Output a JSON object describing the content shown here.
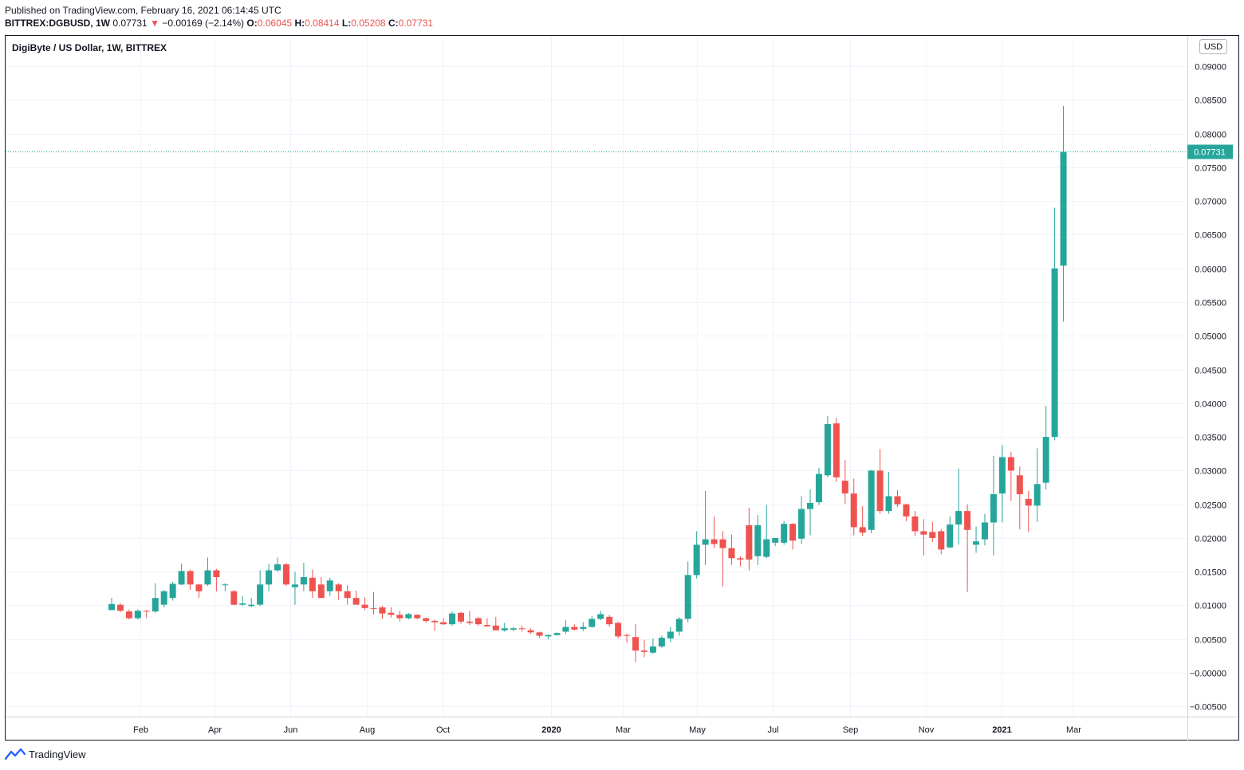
{
  "header": {
    "published": "Published on TradingView.com, February 16, 2021 06:14:45 UTC",
    "symbol": "BITTREX:DGBUSD, 1W",
    "last": "0.07731",
    "change_arrow": "▼",
    "change": "−0.00169 (−2.14%)",
    "o_label": "O:",
    "o_value": "0.06045",
    "h_label": "H:",
    "h_value": "0.08414",
    "l_label": "L:",
    "l_value": "0.05208",
    "c_label": "C:",
    "c_value": "0.07731"
  },
  "chart_title": "DigiByte / US Dollar, 1W, BITTREX",
  "footer": {
    "brand": "TradingView",
    "logo_icon": "tradingview-logo-icon"
  },
  "colors": {
    "up": "#26a69a",
    "down": "#ef5350",
    "grid": "#f0f3fa",
    "text": "#131722"
  },
  "chart_data": {
    "type": "candlestick",
    "title": "DigiByte / US Dollar, 1W, BITTREX",
    "currency_label": "USD",
    "last_price_label": "0.07731",
    "last_price": 0.07731,
    "ylim": [
      -0.0065,
      0.0945
    ],
    "y_ticks": [
      {
        "v": 0.09,
        "label": "0.09000"
      },
      {
        "v": 0.085,
        "label": "0.08500"
      },
      {
        "v": 0.08,
        "label": "0.08000"
      },
      {
        "v": 0.075,
        "label": "0.07500"
      },
      {
        "v": 0.07,
        "label": "0.07000"
      },
      {
        "v": 0.065,
        "label": "0.06500"
      },
      {
        "v": 0.06,
        "label": "0.06000"
      },
      {
        "v": 0.055,
        "label": "0.05500"
      },
      {
        "v": 0.05,
        "label": "0.05000"
      },
      {
        "v": 0.045,
        "label": "0.04500"
      },
      {
        "v": 0.04,
        "label": "0.04000"
      },
      {
        "v": 0.035,
        "label": "0.03500"
      },
      {
        "v": 0.03,
        "label": "0.03000"
      },
      {
        "v": 0.025,
        "label": "0.02500"
      },
      {
        "v": 0.02,
        "label": "0.02000"
      },
      {
        "v": 0.015,
        "label": "0.01500"
      },
      {
        "v": 0.01,
        "label": "0.01000"
      },
      {
        "v": 0.005,
        "label": "0.00500"
      },
      {
        "v": 0.0,
        "label": "−0.00000"
      },
      {
        "v": -0.005,
        "label": "−0.00500"
      }
    ],
    "x_ticks": [
      {
        "week": 3.3,
        "label": "Feb",
        "bold": false
      },
      {
        "week": 11.8,
        "label": "Apr",
        "bold": false
      },
      {
        "week": 20.5,
        "label": "Jun",
        "bold": false
      },
      {
        "week": 29.2,
        "label": "Aug",
        "bold": false
      },
      {
        "week": 37.9,
        "label": "Oct",
        "bold": false
      },
      {
        "week": 50.3,
        "label": "2020",
        "bold": true
      },
      {
        "week": 58.5,
        "label": "Mar",
        "bold": false
      },
      {
        "week": 67.0,
        "label": "May",
        "bold": false
      },
      {
        "week": 75.7,
        "label": "Jul",
        "bold": false
      },
      {
        "week": 84.6,
        "label": "Sep",
        "bold": false
      },
      {
        "week": 93.2,
        "label": "Nov",
        "bold": false
      },
      {
        "week": 101.9,
        "label": "2021",
        "bold": true
      },
      {
        "week": 110.1,
        "label": "Mar",
        "bold": false
      }
    ],
    "candles": [
      {
        "o": 0.0093,
        "h": 0.0111,
        "l": 0.0093,
        "c": 0.0102
      },
      {
        "o": 0.0101,
        "h": 0.0103,
        "l": 0.009,
        "c": 0.0092
      },
      {
        "o": 0.0091,
        "h": 0.0094,
        "l": 0.0079,
        "c": 0.0081
      },
      {
        "o": 0.0081,
        "h": 0.0094,
        "l": 0.0079,
        "c": 0.0092
      },
      {
        "o": 0.0092,
        "h": 0.0093,
        "l": 0.0081,
        "c": 0.0091
      },
      {
        "o": 0.0091,
        "h": 0.0133,
        "l": 0.0089,
        "c": 0.0111
      },
      {
        "o": 0.0101,
        "h": 0.0123,
        "l": 0.0097,
        "c": 0.0121
      },
      {
        "o": 0.0111,
        "h": 0.0135,
        "l": 0.0107,
        "c": 0.0132
      },
      {
        "o": 0.0131,
        "h": 0.0162,
        "l": 0.013,
        "c": 0.0151
      },
      {
        "o": 0.0151,
        "h": 0.0153,
        "l": 0.0123,
        "c": 0.0131
      },
      {
        "o": 0.0131,
        "h": 0.0132,
        "l": 0.0111,
        "c": 0.0121
      },
      {
        "o": 0.0131,
        "h": 0.0171,
        "l": 0.0129,
        "c": 0.0152
      },
      {
        "o": 0.0152,
        "h": 0.0154,
        "l": 0.0121,
        "c": 0.0142
      },
      {
        "o": 0.0131,
        "h": 0.0133,
        "l": 0.0121,
        "c": 0.0131
      },
      {
        "o": 0.0121,
        "h": 0.0123,
        "l": 0.01,
        "c": 0.0101
      },
      {
        "o": 0.0101,
        "h": 0.0114,
        "l": 0.0099,
        "c": 0.0103
      },
      {
        "o": 0.0099,
        "h": 0.0111,
        "l": 0.0097,
        "c": 0.0101
      },
      {
        "o": 0.0101,
        "h": 0.0152,
        "l": 0.0099,
        "c": 0.0131
      },
      {
        "o": 0.0131,
        "h": 0.0162,
        "l": 0.0121,
        "c": 0.0152
      },
      {
        "o": 0.0152,
        "h": 0.0171,
        "l": 0.015,
        "c": 0.0161
      },
      {
        "o": 0.0161,
        "h": 0.0163,
        "l": 0.0129,
        "c": 0.0131
      },
      {
        "o": 0.0127,
        "h": 0.015,
        "l": 0.0101,
        "c": 0.0131
      },
      {
        "o": 0.0131,
        "h": 0.0163,
        "l": 0.0121,
        "c": 0.0142
      },
      {
        "o": 0.0141,
        "h": 0.0153,
        "l": 0.0111,
        "c": 0.0121
      },
      {
        "o": 0.0131,
        "h": 0.0142,
        "l": 0.0111,
        "c": 0.0111
      },
      {
        "o": 0.0121,
        "h": 0.0141,
        "l": 0.0114,
        "c": 0.0137
      },
      {
        "o": 0.0131,
        "h": 0.0133,
        "l": 0.0108,
        "c": 0.0121
      },
      {
        "o": 0.0121,
        "h": 0.013,
        "l": 0.0101,
        "c": 0.0111
      },
      {
        "o": 0.0111,
        "h": 0.0122,
        "l": 0.0101,
        "c": 0.0101
      },
      {
        "o": 0.0101,
        "h": 0.0112,
        "l": 0.0093,
        "c": 0.0096
      },
      {
        "o": 0.0096,
        "h": 0.012,
        "l": 0.0087,
        "c": 0.0095
      },
      {
        "o": 0.0097,
        "h": 0.0099,
        "l": 0.008,
        "c": 0.0088
      },
      {
        "o": 0.0089,
        "h": 0.0097,
        "l": 0.0082,
        "c": 0.0086
      },
      {
        "o": 0.0086,
        "h": 0.0092,
        "l": 0.0076,
        "c": 0.0081
      },
      {
        "o": 0.0081,
        "h": 0.0089,
        "l": 0.0079,
        "c": 0.0087
      },
      {
        "o": 0.0086,
        "h": 0.0087,
        "l": 0.0079,
        "c": 0.0081
      },
      {
        "o": 0.0081,
        "h": 0.0082,
        "l": 0.0074,
        "c": 0.0077
      },
      {
        "o": 0.0077,
        "h": 0.0079,
        "l": 0.0062,
        "c": 0.0075
      },
      {
        "o": 0.0075,
        "h": 0.0081,
        "l": 0.0071,
        "c": 0.0072
      },
      {
        "o": 0.0072,
        "h": 0.0091,
        "l": 0.007,
        "c": 0.0088
      },
      {
        "o": 0.0089,
        "h": 0.009,
        "l": 0.0073,
        "c": 0.0076
      },
      {
        "o": 0.0076,
        "h": 0.0092,
        "l": 0.0071,
        "c": 0.0074
      },
      {
        "o": 0.0081,
        "h": 0.0083,
        "l": 0.007,
        "c": 0.0072
      },
      {
        "o": 0.0071,
        "h": 0.0081,
        "l": 0.0068,
        "c": 0.0069
      },
      {
        "o": 0.007,
        "h": 0.0083,
        "l": 0.0063,
        "c": 0.0063
      },
      {
        "o": 0.0063,
        "h": 0.0074,
        "l": 0.0061,
        "c": 0.0066
      },
      {
        "o": 0.0064,
        "h": 0.0068,
        "l": 0.0062,
        "c": 0.0066
      },
      {
        "o": 0.0066,
        "h": 0.007,
        "l": 0.0061,
        "c": 0.0065
      },
      {
        "o": 0.0063,
        "h": 0.0066,
        "l": 0.0058,
        "c": 0.006
      },
      {
        "o": 0.006,
        "h": 0.0061,
        "l": 0.0052,
        "c": 0.0055
      },
      {
        "o": 0.0054,
        "h": 0.0057,
        "l": 0.005,
        "c": 0.0056
      },
      {
        "o": 0.0056,
        "h": 0.006,
        "l": 0.0055,
        "c": 0.0059
      },
      {
        "o": 0.0061,
        "h": 0.0078,
        "l": 0.0058,
        "c": 0.0068
      },
      {
        "o": 0.0068,
        "h": 0.0072,
        "l": 0.0063,
        "c": 0.0064
      },
      {
        "o": 0.0065,
        "h": 0.0075,
        "l": 0.0062,
        "c": 0.0068
      },
      {
        "o": 0.0068,
        "h": 0.0084,
        "l": 0.0067,
        "c": 0.008
      },
      {
        "o": 0.008,
        "h": 0.0092,
        "l": 0.0078,
        "c": 0.0087
      },
      {
        "o": 0.0083,
        "h": 0.0086,
        "l": 0.0068,
        "c": 0.0072
      },
      {
        "o": 0.0074,
        "h": 0.0076,
        "l": 0.0051,
        "c": 0.0054
      },
      {
        "o": 0.0056,
        "h": 0.0058,
        "l": 0.0045,
        "c": 0.0055
      },
      {
        "o": 0.0053,
        "h": 0.0072,
        "l": 0.0016,
        "c": 0.0033
      },
      {
        "o": 0.0033,
        "h": 0.0049,
        "l": 0.0023,
        "c": 0.0031
      },
      {
        "o": 0.003,
        "h": 0.0051,
        "l": 0.0028,
        "c": 0.0039
      },
      {
        "o": 0.0039,
        "h": 0.0055,
        "l": 0.0037,
        "c": 0.0052
      },
      {
        "o": 0.0051,
        "h": 0.0068,
        "l": 0.0045,
        "c": 0.0061
      },
      {
        "o": 0.0061,
        "h": 0.0083,
        "l": 0.0055,
        "c": 0.008
      },
      {
        "o": 0.008,
        "h": 0.0165,
        "l": 0.0075,
        "c": 0.0145
      },
      {
        "o": 0.0145,
        "h": 0.021,
        "l": 0.014,
        "c": 0.019
      },
      {
        "o": 0.019,
        "h": 0.027,
        "l": 0.016,
        "c": 0.0198
      },
      {
        "o": 0.0198,
        "h": 0.0232,
        "l": 0.0185,
        "c": 0.0191
      },
      {
        "o": 0.0198,
        "h": 0.021,
        "l": 0.0128,
        "c": 0.0185
      },
      {
        "o": 0.0185,
        "h": 0.0205,
        "l": 0.016,
        "c": 0.017
      },
      {
        "o": 0.017,
        "h": 0.0173,
        "l": 0.0158,
        "c": 0.0168
      },
      {
        "o": 0.0219,
        "h": 0.0245,
        "l": 0.0152,
        "c": 0.0168
      },
      {
        "o": 0.0173,
        "h": 0.0234,
        "l": 0.016,
        "c": 0.0219
      },
      {
        "o": 0.0172,
        "h": 0.0249,
        "l": 0.017,
        "c": 0.0198
      },
      {
        "o": 0.0193,
        "h": 0.02,
        "l": 0.0188,
        "c": 0.02
      },
      {
        "o": 0.0193,
        "h": 0.0225,
        "l": 0.019,
        "c": 0.0221
      },
      {
        "o": 0.0221,
        "h": 0.0222,
        "l": 0.0183,
        "c": 0.0196
      },
      {
        "o": 0.0199,
        "h": 0.0262,
        "l": 0.0191,
        "c": 0.0243
      },
      {
        "o": 0.0243,
        "h": 0.0272,
        "l": 0.0204,
        "c": 0.0252
      },
      {
        "o": 0.0253,
        "h": 0.0304,
        "l": 0.0249,
        "c": 0.0295
      },
      {
        "o": 0.0293,
        "h": 0.0381,
        "l": 0.029,
        "c": 0.0369
      },
      {
        "o": 0.037,
        "h": 0.0378,
        "l": 0.0283,
        "c": 0.029
      },
      {
        "o": 0.0285,
        "h": 0.0316,
        "l": 0.0251,
        "c": 0.0266
      },
      {
        "o": 0.0266,
        "h": 0.0288,
        "l": 0.0204,
        "c": 0.0216
      },
      {
        "o": 0.0216,
        "h": 0.0247,
        "l": 0.0203,
        "c": 0.0208
      },
      {
        "o": 0.0212,
        "h": 0.0301,
        "l": 0.0207,
        "c": 0.03
      },
      {
        "o": 0.03,
        "h": 0.0332,
        "l": 0.0236,
        "c": 0.024
      },
      {
        "o": 0.024,
        "h": 0.0298,
        "l": 0.0236,
        "c": 0.0262
      },
      {
        "o": 0.0262,
        "h": 0.0271,
        "l": 0.0246,
        "c": 0.025
      },
      {
        "o": 0.025,
        "h": 0.0251,
        "l": 0.0225,
        "c": 0.0232
      },
      {
        "o": 0.0232,
        "h": 0.024,
        "l": 0.0203,
        "c": 0.021
      },
      {
        "o": 0.021,
        "h": 0.0228,
        "l": 0.0174,
        "c": 0.0205
      },
      {
        "o": 0.0209,
        "h": 0.0224,
        "l": 0.0194,
        "c": 0.02
      },
      {
        "o": 0.021,
        "h": 0.0213,
        "l": 0.0176,
        "c": 0.0183
      },
      {
        "o": 0.0186,
        "h": 0.0232,
        "l": 0.0185,
        "c": 0.022
      },
      {
        "o": 0.022,
        "h": 0.0303,
        "l": 0.019,
        "c": 0.024
      },
      {
        "o": 0.024,
        "h": 0.025,
        "l": 0.012,
        "c": 0.0212
      },
      {
        "o": 0.019,
        "h": 0.0217,
        "l": 0.0178,
        "c": 0.0195
      },
      {
        "o": 0.0198,
        "h": 0.0236,
        "l": 0.0189,
        "c": 0.0223
      },
      {
        "o": 0.0223,
        "h": 0.0322,
        "l": 0.0174,
        "c": 0.0265
      },
      {
        "o": 0.0266,
        "h": 0.0338,
        "l": 0.0223,
        "c": 0.032
      },
      {
        "o": 0.032,
        "h": 0.0328,
        "l": 0.0255,
        "c": 0.03
      },
      {
        "o": 0.0293,
        "h": 0.0306,
        "l": 0.0213,
        "c": 0.0265
      },
      {
        "o": 0.0258,
        "h": 0.027,
        "l": 0.0209,
        "c": 0.0248
      },
      {
        "o": 0.0248,
        "h": 0.0333,
        "l": 0.0224,
        "c": 0.028
      },
      {
        "o": 0.0282,
        "h": 0.0396,
        "l": 0.0272,
        "c": 0.035
      },
      {
        "o": 0.035,
        "h": 0.069,
        "l": 0.0345,
        "c": 0.06
      },
      {
        "o": 0.0604,
        "h": 0.0841,
        "l": 0.0521,
        "c": 0.0773
      }
    ]
  }
}
